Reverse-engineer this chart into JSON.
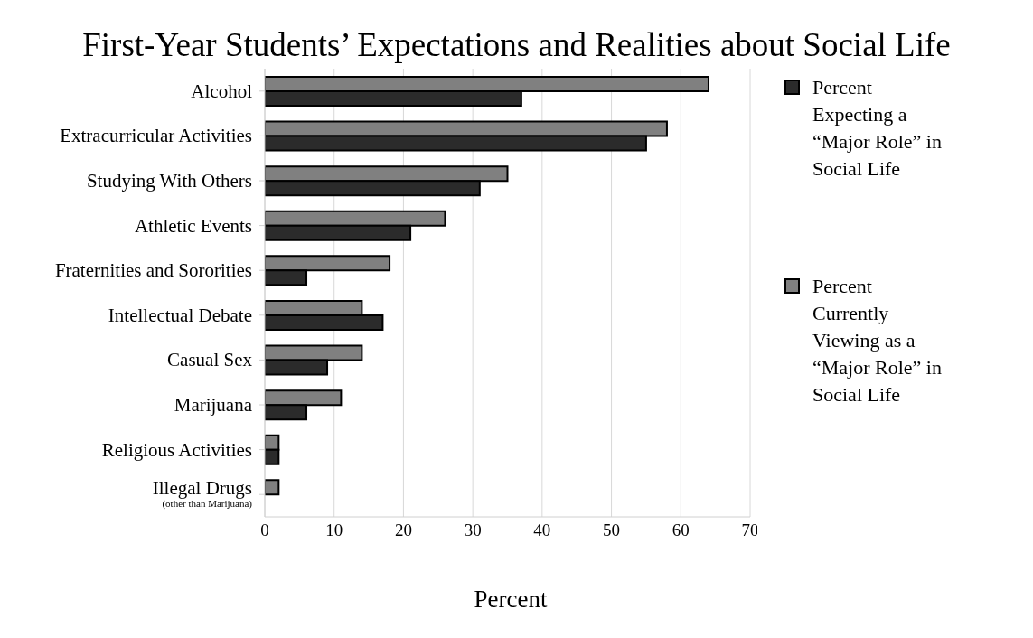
{
  "chart_data": {
    "type": "bar",
    "orientation": "horizontal",
    "title": "First-Year Students’ Expectations and Realities about Social Life",
    "xlabel": "Percent",
    "categories": [
      "Alcohol",
      "Extracurricular Activities",
      "Studying With Others",
      "Athletic Events",
      "Fraternities and Sororities",
      "Intellectual Debate",
      "Casual Sex",
      "Marijuana",
      "Religious Activities",
      "Illegal Drugs\n(other than Marijuana)"
    ],
    "series": [
      {
        "name": "Percent Expecting a “Major Role” in Social Life",
        "color": "#2b2b2b",
        "values": [
          37,
          55,
          31,
          21,
          6,
          17,
          9,
          6,
          2,
          null
        ]
      },
      {
        "name": "Percent Currently Viewing as a “Major Role” in Social Life",
        "color": "#808080",
        "values": [
          64,
          58,
          35,
          26,
          18,
          14,
          14,
          11,
          2,
          2
        ]
      }
    ],
    "xlim": [
      0,
      70
    ],
    "xticks": [
      0,
      10,
      20,
      30,
      40,
      50,
      60,
      70
    ],
    "grid": "x",
    "legend": "right"
  }
}
